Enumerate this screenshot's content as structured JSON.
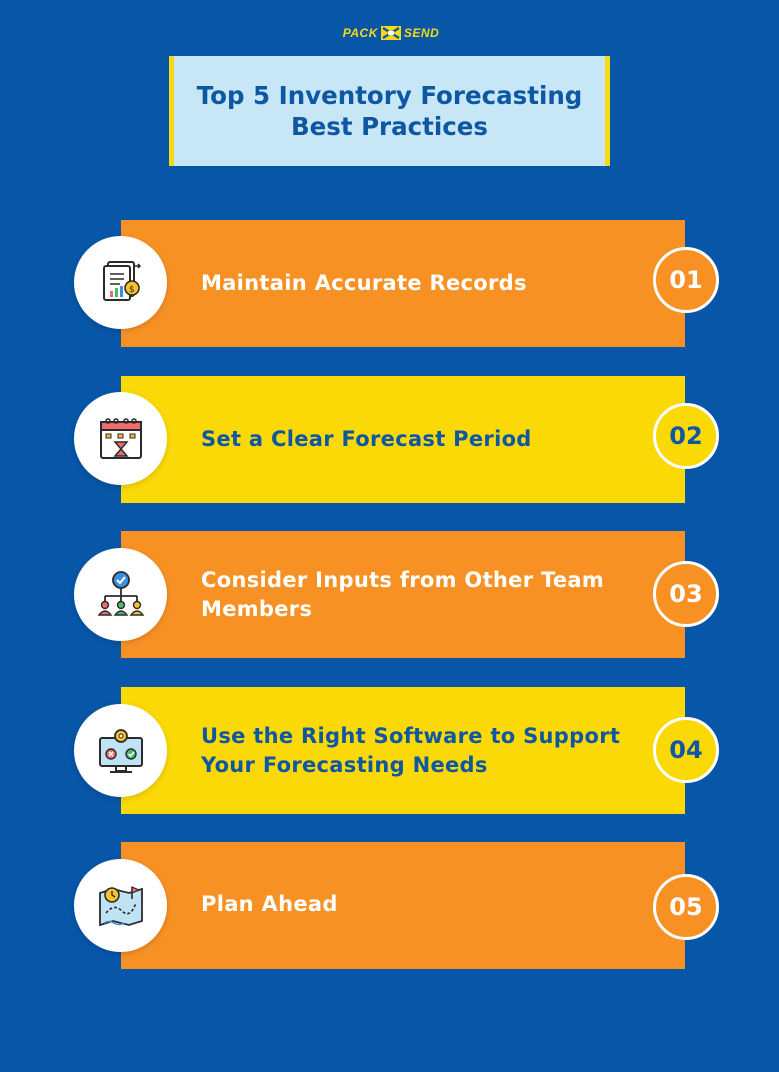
{
  "logo": {
    "left_word": "PACK",
    "right_word": "SEND"
  },
  "title": "Top 5 Inventory Forecasting Best Practices",
  "items": [
    {
      "number": "01",
      "label": "Maintain Accurate Records",
      "style": "orange",
      "icon": "financial-records-icon"
    },
    {
      "number": "02",
      "label": "Set a Clear Forecast Period",
      "style": "yellow",
      "icon": "calendar-hourglass-icon"
    },
    {
      "number": "03",
      "label": "Consider Inputs from Other Team Members",
      "style": "orange",
      "icon": "team-hierarchy-icon"
    },
    {
      "number": "04",
      "label": "Use the Right Software to Support Your Forecasting Needs",
      "style": "yellow",
      "icon": "monitor-software-icon"
    },
    {
      "number": "05",
      "label": "Plan Ahead",
      "style": "orange",
      "icon": "planning-map-icon"
    }
  ],
  "colors": {
    "background": "#0756a8",
    "orange": "#f79124",
    "yellow": "#fbd906",
    "title_box": "#c7e7f7",
    "blue_text": "#0d57a3"
  }
}
